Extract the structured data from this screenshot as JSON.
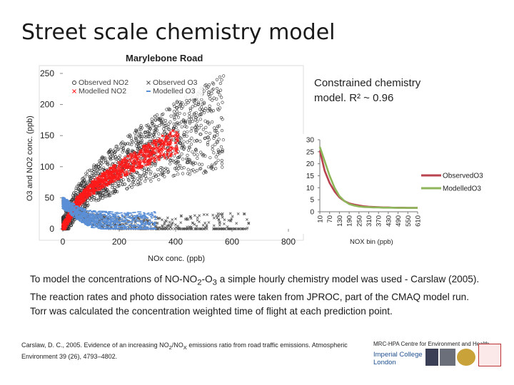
{
  "slide": {
    "title": "Street scale chemistry model",
    "subtitle": "Marylebone Road",
    "note": "Constrained chemistry model. R² ~ 0.96",
    "body_html": "To model the concentrations of NO-NO<sub>2</sub>-O<sub>3</sub> a simple hourly chemistry model was used - Carslaw (2005). The reaction rates and photo dissociation rates were taken from JPROC, part of the CMAQ model run. Torr was calculated the concentration weighted time of flight at each prediction point.",
    "reference_html": "Carslaw, D. C., 2005. Evidence of an increasing NO<sub>2</sub>/NO<sub>X</sub> emissions ratio from road traffic emissions. Atmospheric Environment 39 (26), 4793–4802.",
    "logo_line1": "MRC-HPA Centre for Environment and Health",
    "logo_line2": "Imperial College",
    "logo_line3": "London",
    "colors": {
      "observed_no2": "#333333",
      "modelled_no2": "#ff1a1a",
      "observed_o3": "#555555",
      "modelled_o3": "#5b8fd6"
    }
  },
  "chart_data": [
    {
      "type": "scatter",
      "title": "Marylebone Road",
      "xlabel": "NOx conc. (ppb)",
      "ylabel": "O3 and NO2 conc. (ppb)",
      "xlim": [
        0,
        800
      ],
      "ylim": [
        0,
        250
      ],
      "x_ticks": [
        0,
        200,
        400,
        600,
        800
      ],
      "y_ticks": [
        0,
        50,
        100,
        150,
        200,
        250
      ],
      "legend": [
        "Observed NO2",
        "Observed O3",
        "Modelled NO2",
        "Modelled O3"
      ],
      "legend_position": "top-left",
      "series": [
        {
          "name": "Observed NO2",
          "marker": "circle",
          "trend": [
            [
              0,
              0
            ],
            [
              50,
              45
            ],
            [
              100,
              70
            ],
            [
              200,
              100
            ],
            [
              300,
              125
            ],
            [
              400,
              145
            ],
            [
              500,
              160
            ],
            [
              560,
              170
            ]
          ]
        },
        {
          "name": "Observed O3",
          "marker": "x",
          "trend": [
            [
              0,
              40
            ],
            [
              50,
              25
            ],
            [
              100,
              15
            ],
            [
              200,
              8
            ],
            [
              300,
              5
            ],
            [
              400,
              3
            ],
            [
              500,
              2
            ],
            [
              620,
              2
            ]
          ]
        },
        {
          "name": "Modelled NO2",
          "marker": "x",
          "trend": [
            [
              0,
              0
            ],
            [
              50,
              42
            ],
            [
              100,
              65
            ],
            [
              200,
              95
            ],
            [
              300,
              120
            ],
            [
              400,
              140
            ]
          ]
        },
        {
          "name": "Modelled O3",
          "marker": "dash",
          "trend": [
            [
              0,
              42
            ],
            [
              50,
              26
            ],
            [
              100,
              16
            ],
            [
              200,
              9
            ],
            [
              300,
              5
            ],
            [
              400,
              3
            ]
          ]
        }
      ]
    },
    {
      "type": "line",
      "xlabel": "NOX bin (ppb)",
      "ylim": [
        0,
        30
      ],
      "y_ticks": [
        0,
        5,
        10,
        15,
        20,
        25,
        30
      ],
      "x_tick_labels": [
        "10",
        "70",
        "130",
        "190",
        "250",
        "310",
        "370",
        "430",
        "490",
        "550",
        "610"
      ],
      "legend_position": "right",
      "x": [
        10,
        40,
        70,
        100,
        130,
        160,
        190,
        220,
        250,
        280,
        310,
        340,
        370,
        400,
        430,
        460,
        490,
        520,
        550,
        580,
        610
      ],
      "series": [
        {
          "name": "ObservedO3",
          "color": "#b8424e",
          "values": [
            25.5,
            17,
            12,
            8.5,
            6,
            4.5,
            3.5,
            3,
            2.6,
            2.3,
            2.1,
            2,
            1.9,
            1.8,
            1.8,
            1.7,
            1.7,
            1.7,
            1.6,
            1.6,
            1.6
          ]
        },
        {
          "name": "ModelledO3",
          "color": "#8db65a",
          "values": [
            27,
            21,
            15,
            10,
            6.5,
            4.5,
            3.2,
            2.6,
            2.2,
            2,
            1.9,
            1.8,
            1.8,
            1.7,
            1.7,
            1.7,
            1.6,
            1.6,
            1.6,
            1.6,
            1.6
          ]
        }
      ]
    }
  ]
}
